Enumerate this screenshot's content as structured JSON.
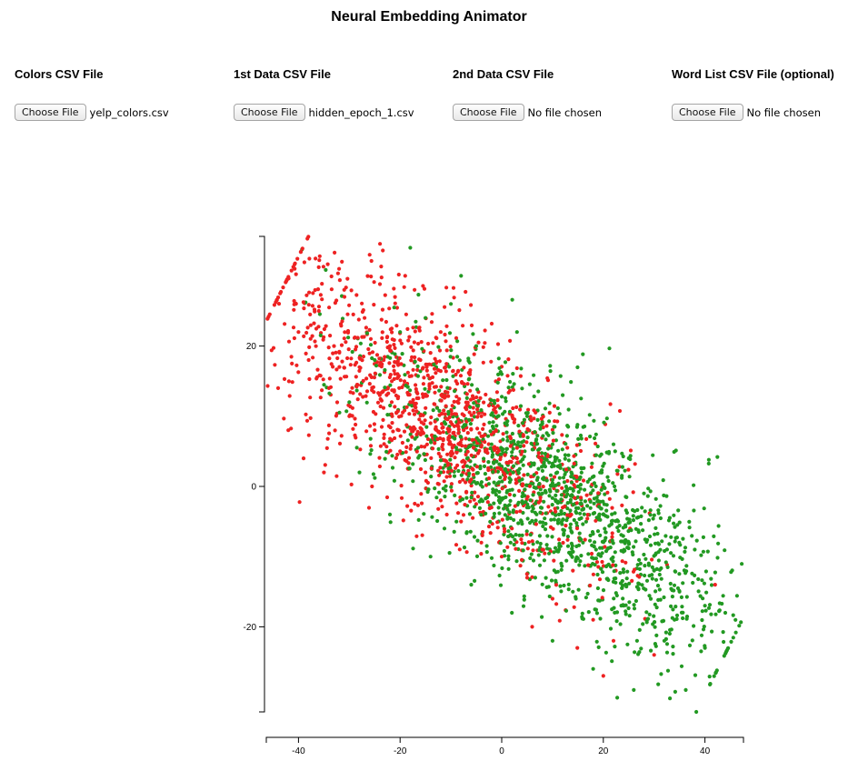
{
  "app": {
    "title": "Neural Embedding Animator"
  },
  "uploaders": [
    {
      "label": "Colors CSV File",
      "button": "Choose File",
      "file": "yelp_colors.csv"
    },
    {
      "label": "1st Data CSV File",
      "button": "Choose File",
      "file": "hidden_epoch_1.csv"
    },
    {
      "label": "2nd Data CSV File",
      "button": "Choose File",
      "file": "No file chosen"
    },
    {
      "label": "Word List CSV File (optional)",
      "button": "Choose File",
      "file": "No file chosen"
    }
  ],
  "chart_data": {
    "type": "scatter",
    "title": "",
    "xlabel": "",
    "ylabel": "",
    "xlim": [
      -46,
      48
    ],
    "ylim": [
      -32,
      35
    ],
    "x_ticks": [
      "-40",
      "-20",
      "0",
      "20",
      "40"
    ],
    "y_ticks": [
      "20",
      "0",
      "-20"
    ],
    "x_tick_values": [
      -40,
      -20,
      0,
      20,
      40
    ],
    "y_tick_values": [
      20,
      0,
      -20
    ],
    "grid": false,
    "colors": {
      "red": "#ee2222",
      "green": "#229922"
    },
    "distribution_note_counts": {
      "total_points": 2600,
      "red_fraction": 0.45
    },
    "series": [
      {
        "color_key": "red",
        "values": [
          [
            -40,
            22
          ],
          [
            -38,
            18
          ],
          [
            -36,
            25
          ],
          [
            -34,
            14
          ],
          [
            -33,
            20
          ],
          [
            -31,
            28
          ],
          [
            -30,
            10
          ],
          [
            -28,
            17
          ],
          [
            -27,
            24
          ],
          [
            -25,
            8
          ],
          [
            -24,
            13
          ],
          [
            -22,
            20
          ],
          [
            -21,
            27
          ],
          [
            -20,
            5
          ],
          [
            -18,
            12
          ],
          [
            -16,
            18
          ],
          [
            -15,
            2
          ],
          [
            -14,
            9
          ],
          [
            -12,
            -2
          ],
          [
            -10,
            6
          ],
          [
            -8,
            -5
          ],
          [
            -6,
            1
          ],
          [
            -4,
            -8
          ],
          [
            -2,
            -3
          ],
          [
            0,
            -10
          ],
          [
            2,
            -6
          ],
          [
            5,
            -13
          ],
          [
            8,
            -9
          ],
          [
            10,
            -16
          ],
          [
            14,
            -12
          ],
          [
            18,
            -19
          ],
          [
            22,
            -22
          ],
          [
            -44,
            14
          ],
          [
            -42,
            8
          ],
          [
            -39,
            4
          ],
          [
            -35,
            2
          ],
          [
            -32,
            31
          ],
          [
            -26,
            33
          ],
          [
            -19,
            30
          ],
          [
            -12,
            22
          ],
          [
            -9,
            15
          ],
          [
            -4,
            10
          ],
          [
            3,
            4
          ],
          [
            12,
            -3
          ],
          [
            20,
            -27
          ],
          [
            30,
            -24
          ],
          [
            42,
            -14
          ],
          [
            6,
            -20
          ]
        ]
      },
      {
        "color_key": "green",
        "values": [
          [
            -30,
            12
          ],
          [
            -25,
            18
          ],
          [
            -20,
            22
          ],
          [
            -15,
            24
          ],
          [
            -10,
            26
          ],
          [
            -5,
            20
          ],
          [
            0,
            16
          ],
          [
            5,
            10
          ],
          [
            10,
            6
          ],
          [
            15,
            0
          ],
          [
            20,
            -4
          ],
          [
            25,
            -8
          ],
          [
            30,
            -12
          ],
          [
            35,
            -15
          ],
          [
            40,
            -17
          ],
          [
            44,
            -18
          ],
          [
            -28,
            2
          ],
          [
            -22,
            -4
          ],
          [
            -14,
            -10
          ],
          [
            -6,
            -14
          ],
          [
            2,
            -18
          ],
          [
            10,
            -22
          ],
          [
            18,
            -26
          ],
          [
            26,
            -29
          ],
          [
            32,
            -22
          ],
          [
            38,
            -9
          ],
          [
            28,
            -1
          ],
          [
            22,
            6
          ],
          [
            12,
            13
          ],
          [
            3,
            22
          ],
          [
            -8,
            30
          ],
          [
            -18,
            34
          ],
          [
            14,
            -15
          ],
          [
            24,
            -17
          ],
          [
            34,
            -19
          ],
          [
            40,
            -23
          ],
          [
            8,
            -1
          ],
          [
            16,
            -8
          ],
          [
            -2,
            6
          ],
          [
            -12,
            2
          ]
        ]
      }
    ]
  }
}
